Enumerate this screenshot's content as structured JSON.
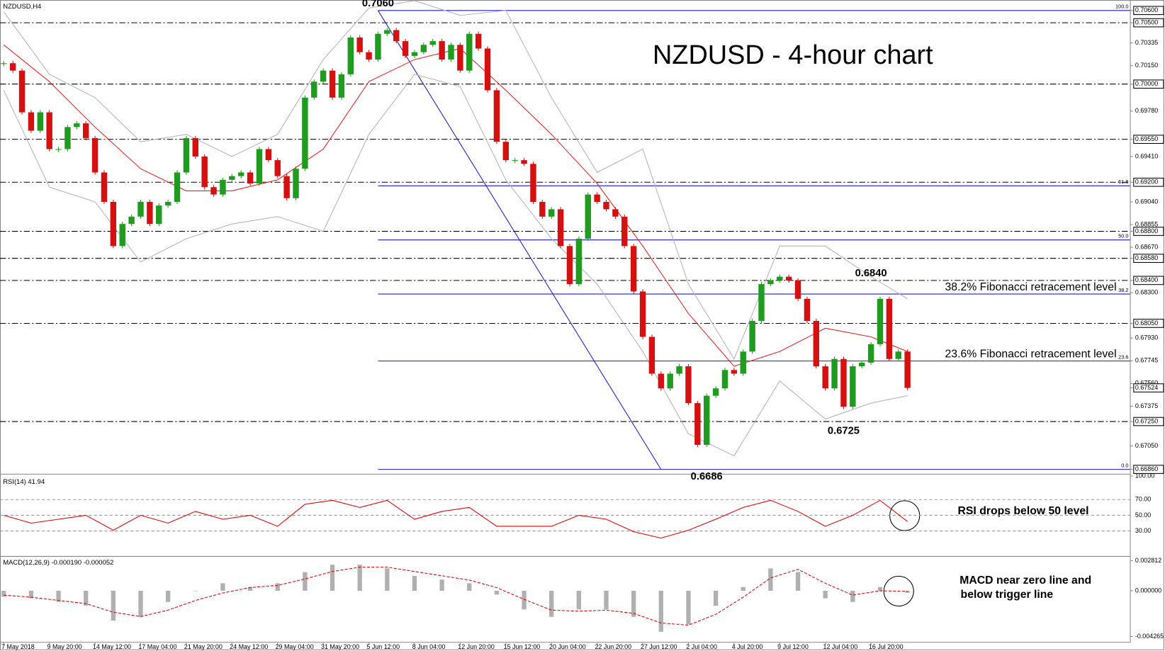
{
  "chart_data": {
    "type": "candlestick",
    "title": "NZDUSD - 4-hour chart",
    "symbol": "NZDUSD,H4",
    "up_color": "#1f9b1f",
    "down_color": "#d41010",
    "closes": [
      0.7017,
      0.7011,
      0.6977,
      0.6962,
      0.6977,
      0.6947,
      0.6947,
      0.6965,
      0.6968,
      0.6956,
      0.6928,
      0.6904,
      0.6868,
      0.6886,
      0.6892,
      0.6904,
      0.6886,
      0.6901,
      0.6904,
      0.6928,
      0.6956,
      0.6941,
      0.6916,
      0.691,
      0.6922,
      0.6925,
      0.6928,
      0.6919,
      0.6947,
      0.6938,
      0.6925,
      0.6907,
      0.6931,
      0.6989,
      0.7002,
      0.7011,
      0.6989,
      0.7008,
      0.7038,
      0.7026,
      0.702,
      0.7041,
      0.7044,
      0.7035,
      0.7023,
      0.7026,
      0.7032,
      0.7035,
      0.702,
      0.7032,
      0.7011,
      0.7041,
      0.7029,
      0.6995,
      0.6953,
      0.6938,
      0.6938,
      0.6935,
      0.6904,
      0.6892,
      0.6898,
      0.6868,
      0.6837,
      0.6874,
      0.691,
      0.6904,
      0.6898,
      0.6892,
      0.6868,
      0.6831,
      0.6794,
      0.6764,
      0.6752,
      0.6764,
      0.677,
      0.674,
      0.6706,
      0.6746,
      0.6752,
      0.6767,
      0.6764,
      0.6782,
      0.6807,
      0.6837,
      0.684,
      0.6843,
      0.684,
      0.6825,
      0.6807,
      0.677,
      0.6752,
      0.6776,
      0.6737,
      0.677,
      0.6773,
      0.6788,
      0.6825,
      0.6776,
      0.6782,
      0.67524
    ],
    "last_price": 0.67524,
    "moving_average": {
      "color": "#e8231f",
      "values": [
        0.7032,
        0.7002,
        0.6965,
        0.6931,
        0.6913,
        0.6913,
        0.6922,
        0.6947,
        0.7002,
        0.702,
        0.7029,
        0.6995,
        0.6959,
        0.6919,
        0.6868,
        0.6813,
        0.677,
        0.6782,
        0.6801,
        0.6794,
        0.6782
      ]
    },
    "bands": {
      "color": "#b4b4b4",
      "upper": [
        0.7059,
        0.7008,
        0.6989,
        0.6953,
        0.6959,
        0.6941,
        0.6959,
        0.702,
        0.7062,
        0.7068,
        0.7056,
        0.706,
        0.6989,
        0.6928,
        0.6947,
        0.6837,
        0.6776,
        0.6868,
        0.6868,
        0.6843,
        0.6825
      ],
      "lower": [
        0.6995,
        0.6916,
        0.6904,
        0.6855,
        0.6874,
        0.6886,
        0.6892,
        0.688,
        0.6959,
        0.7008,
        0.6998,
        0.6922,
        0.6874,
        0.6837,
        0.6782,
        0.6715,
        0.6697,
        0.6758,
        0.6727,
        0.674,
        0.6746
      ]
    },
    "ylim": [
      0.66836,
      0.70661
    ],
    "yticks": [
      {
        "value": 0.706,
        "label": "0.70600"
      },
      {
        "value": 0.705,
        "label": "0.70500"
      },
      {
        "value": 0.70335,
        "label": "0.70335"
      },
      {
        "value": 0.7015,
        "label": "0.70150"
      },
      {
        "value": 0.7,
        "label": "0.70000"
      },
      {
        "value": 0.6978,
        "label": "0.69780"
      },
      {
        "value": 0.6955,
        "label": "0.69550"
      },
      {
        "value": 0.6941,
        "label": "0.69410"
      },
      {
        "value": 0.692,
        "label": "0.69200"
      },
      {
        "value": 0.6904,
        "label": "0.69040"
      },
      {
        "value": 0.68855,
        "label": "0.68855"
      },
      {
        "value": 0.688,
        "label": "0.68800"
      },
      {
        "value": 0.6867,
        "label": "0.68670"
      },
      {
        "value": 0.6858,
        "label": "0.68580"
      },
      {
        "value": 0.684,
        "label": "0.68400"
      },
      {
        "value": 0.683,
        "label": "0.68300"
      },
      {
        "value": 0.6805,
        "label": "0.68050"
      },
      {
        "value": 0.6793,
        "label": "0.67930"
      },
      {
        "value": 0.67745,
        "label": "0.67745"
      },
      {
        "value": 0.6756,
        "label": "0.67560"
      },
      {
        "value": 0.67524,
        "label": "0.67524"
      },
      {
        "value": 0.67375,
        "label": "0.67375"
      },
      {
        "value": 0.6725,
        "label": "0.67250"
      },
      {
        "value": 0.6705,
        "label": "0.67050"
      },
      {
        "value": 0.6686,
        "label": "0.66860"
      }
    ],
    "levels": [
      0.705,
      0.7,
      0.6955,
      0.692,
      0.688,
      0.6858,
      0.684,
      0.6805,
      0.6725
    ],
    "fibonacci": {
      "color": "#1a1ad0",
      "levels": [
        {
          "label": "100.0",
          "price": 0.706
        },
        {
          "label": "61.8",
          "price": 0.69171
        },
        {
          "label": "50.0",
          "price": 0.6873
        },
        {
          "label": "38.2",
          "price": 0.68289,
          "text": "38.2% Fibonacci retracement level"
        },
        {
          "label": "23.6",
          "price": 0.67743,
          "text": "23.6% Fibonacci retracement level"
        },
        {
          "label": "0.0",
          "price": 0.6686
        }
      ]
    },
    "annotations": [
      {
        "text": "0.7060",
        "price": 0.706
      },
      {
        "text": "0.6686",
        "price": 0.6686
      },
      {
        "text": "0.6840",
        "price": 0.684
      },
      {
        "text": "0.6725",
        "price": 0.6725
      }
    ],
    "x_labels": [
      "7 May 2018",
      "9 May 20:00",
      "14 May 12:00",
      "17 May 04:00",
      "21 May 20:00",
      "24 May 12:00",
      "29 May 04:00",
      "31 May 20:00",
      "5 Jun 12:00",
      "8 Jun 04:00",
      "12 Jun 20:00",
      "15 Jun 12:00",
      "20 Jun 04:00",
      "22 Jun 20:00",
      "27 Jun 12:00",
      "2 Jul 04:00",
      "4 Jul 20:00",
      "9 Jul 12:00",
      "12 Jul 04:00",
      "16 Jul 20:00"
    ],
    "rsi": {
      "label": "RSI(14) 41.94",
      "color": "#e00000",
      "ylim": [
        0,
        100
      ],
      "yticks": [
        {
          "value": 100,
          "label": "100.00"
        },
        {
          "value": 70,
          "label": "70.00"
        },
        {
          "value": 50,
          "label": "50.00"
        },
        {
          "value": 30,
          "label": "30.00"
        }
      ],
      "values": [
        50,
        40,
        45,
        50,
        31,
        50,
        40,
        55,
        45,
        50,
        36,
        64,
        69,
        60,
        69,
        45,
        55,
        60,
        36,
        36,
        36,
        50,
        45,
        29,
        21,
        31,
        45,
        60,
        69,
        55,
        36,
        50,
        69,
        42
      ],
      "note": "RSI drops below 50 level"
    },
    "macd": {
      "label": "MACD(12,26,9) -0.000190 -0.000052",
      "histogram_color": "#b0b0b0",
      "signal_color": "#e00000",
      "ylim": [
        -0.0047,
        0.0031
      ],
      "yticks": [
        {
          "value": 0.002812,
          "label": "0.002812"
        },
        {
          "value": 0,
          "label": "0.000000"
        },
        {
          "value": -0.004265,
          "label": "-0.004265"
        }
      ],
      "histogram": [
        -0.00056,
        -0.0007,
        -0.00104,
        -0.00139,
        -0.00278,
        -0.00243,
        -0.00104,
        0,
        0.0007,
        0.00035,
        0.0007,
        0.00174,
        0.00243,
        0.00243,
        0.00209,
        0.00139,
        0.00104,
        0.0007,
        -0.00035,
        -0.00174,
        -0.00243,
        -0.00174,
        -0.00174,
        -0.00243,
        -0.00382,
        -0.00313,
        -0.00139,
        0.00035,
        0.00209,
        0.00174,
        -0.0007,
        -0.00104,
        0.00035,
        -0.00019
      ],
      "signal": [
        -0.0004,
        -0.0006,
        -0.0009,
        -0.0012,
        -0.002,
        -0.0024,
        -0.0018,
        -0.0009,
        -0.0002,
        0.0003,
        0.0005,
        0.0011,
        0.0018,
        0.0022,
        0.0022,
        0.0018,
        0.0014,
        0.001,
        0.0003,
        -0.0008,
        -0.0018,
        -0.0019,
        -0.0018,
        -0.0021,
        -0.003,
        -0.0032,
        -0.0022,
        -0.0006,
        0.0012,
        0.002,
        0.0007,
        -0.0004,
        0,
        -5.2e-05
      ],
      "notes": [
        "MACD near zero line and",
        "below trigger line"
      ]
    }
  }
}
